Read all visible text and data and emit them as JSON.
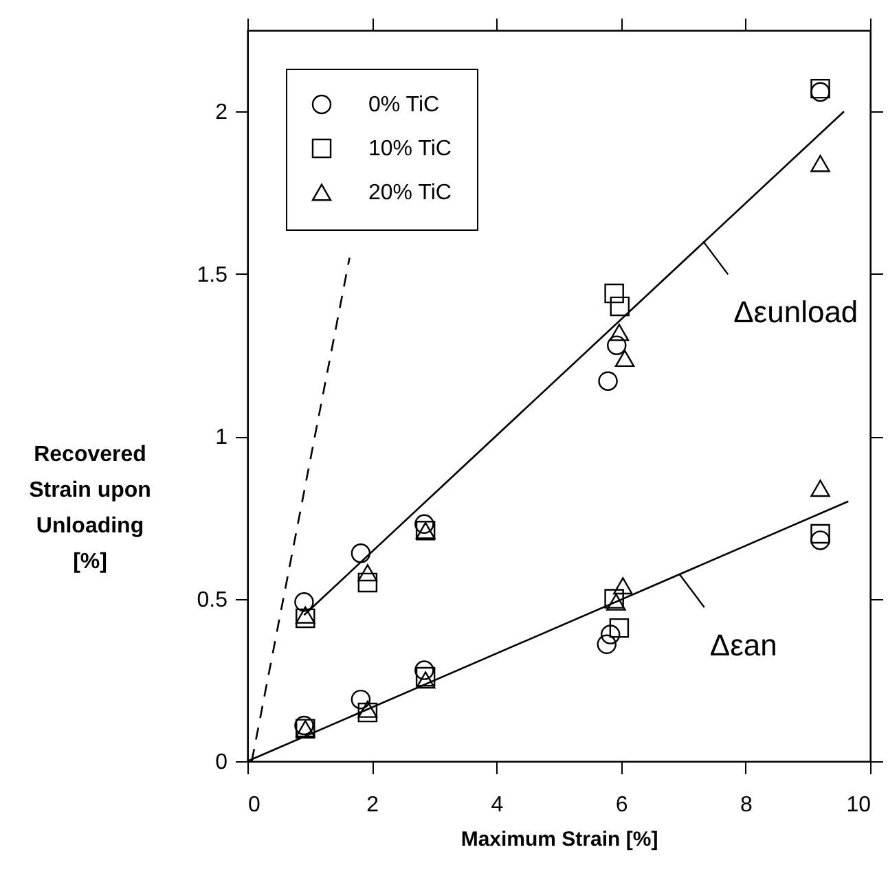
{
  "chart_data": {
    "type": "scatter",
    "xlabel": "Maximum Strain   [%]",
    "ylabel": "Recovered\nStrain upon\nUnloading\n[%]",
    "xlim": [
      0,
      10
    ],
    "ylim": [
      0,
      2.25
    ],
    "xticks": [
      0,
      2,
      4,
      6,
      8,
      10
    ],
    "yticks": [
      0,
      0.5,
      1,
      1.5,
      2
    ],
    "grid": false,
    "legend": "top left",
    "series": [
      {
        "name": "0% TiC",
        "color": "#000000",
        "marker": "circle",
        "x": [
          0.91,
          1.82,
          2.84,
          5.79,
          5.93,
          9.2,
          0.91,
          1.82,
          2.84,
          5.77,
          5.83,
          9.2
        ],
        "values": [
          0.49,
          0.64,
          0.73,
          1.17,
          1.28,
          2.06,
          0.11,
          0.19,
          0.28,
          0.36,
          0.39,
          0.68
        ]
      },
      {
        "name": "10% TiC",
        "color": "#000000",
        "marker": "square",
        "x": [
          0.93,
          1.93,
          2.86,
          5.89,
          5.98,
          9.2,
          0.93,
          1.93,
          2.86,
          5.89,
          5.97,
          9.2
        ],
        "values": [
          0.44,
          0.55,
          0.71,
          1.44,
          1.4,
          2.07,
          0.1,
          0.15,
          0.26,
          0.5,
          0.41,
          0.7
        ]
      },
      {
        "name": "20% TiC",
        "color": "#000000",
        "marker": "triangle",
        "x": [
          0.93,
          1.93,
          2.86,
          5.97,
          6.06,
          9.2,
          0.93,
          1.93,
          2.86,
          5.92,
          6.03,
          9.2
        ],
        "values": [
          0.45,
          0.58,
          0.71,
          1.32,
          1.24,
          1.84,
          0.1,
          0.16,
          0.25,
          0.49,
          0.54,
          0.84
        ]
      },
      {
        "type": "line",
        "color": "#000000",
        "line_style": "solid",
        "x": [
          0.91,
          9.58
        ],
        "values": [
          0.45,
          2.0
        ]
      },
      {
        "type": "line",
        "color": "#000000",
        "line_style": "solid",
        "x": [
          0,
          9.65
        ],
        "values": [
          0,
          0.8
        ]
      },
      {
        "type": "line",
        "color": "#000000",
        "line_style": "dashed",
        "x": [
          0.07,
          1.64
        ],
        "values": [
          0,
          1.55
        ]
      }
    ],
    "annotations": [
      {
        "text": "Δεunload",
        "x": 7.32,
        "y": 1.6
      },
      {
        "text": "Δεan",
        "x": 6.94,
        "y": 0.575
      }
    ]
  }
}
